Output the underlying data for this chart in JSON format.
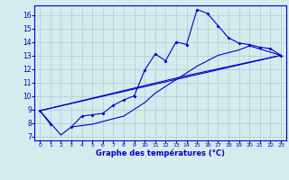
{
  "xlabel": "Graphe des températures (°C)",
  "xlim": [
    -0.5,
    23.5
  ],
  "ylim": [
    6.7,
    16.7
  ],
  "yticks": [
    7,
    8,
    9,
    10,
    11,
    12,
    13,
    14,
    15,
    16
  ],
  "xticks": [
    0,
    1,
    2,
    3,
    4,
    5,
    6,
    7,
    8,
    9,
    10,
    11,
    12,
    13,
    14,
    15,
    16,
    17,
    18,
    19,
    20,
    21,
    22,
    23
  ],
  "bg_color": "#d4ecee",
  "grid_color": "#aacdd2",
  "line_color": "#0000cc",
  "line_main": {
    "x": [
      0,
      1,
      2,
      3,
      4,
      5,
      6,
      7,
      8,
      9,
      10,
      11,
      12,
      13,
      14,
      15,
      16,
      17,
      18,
      19,
      20,
      21,
      22,
      23
    ],
    "y": [
      8.9,
      7.9,
      null,
      7.7,
      8.5,
      8.6,
      8.7,
      9.3,
      9.7,
      10.0,
      11.9,
      13.1,
      12.6,
      14.0,
      13.8,
      16.4,
      16.1,
      15.2,
      14.3,
      13.9,
      13.8,
      13.6,
      13.5,
      13.0
    ]
  },
  "line_smooth1": {
    "x": [
      0,
      2,
      3,
      4,
      5,
      6,
      7,
      8,
      9,
      10,
      11,
      12,
      13,
      14,
      15,
      16,
      17,
      18,
      19,
      20,
      23
    ],
    "y": [
      8.9,
      7.1,
      7.7,
      7.8,
      7.9,
      8.1,
      8.3,
      8.5,
      9.0,
      9.5,
      10.2,
      10.7,
      11.2,
      11.7,
      12.2,
      12.6,
      13.0,
      13.2,
      13.4,
      13.7,
      13.0
    ]
  },
  "line_diag1": {
    "x": [
      0,
      23
    ],
    "y": [
      8.9,
      13.0
    ]
  },
  "line_diag2": {
    "x": [
      0,
      14,
      23
    ],
    "y": [
      8.9,
      11.5,
      13.0
    ]
  }
}
